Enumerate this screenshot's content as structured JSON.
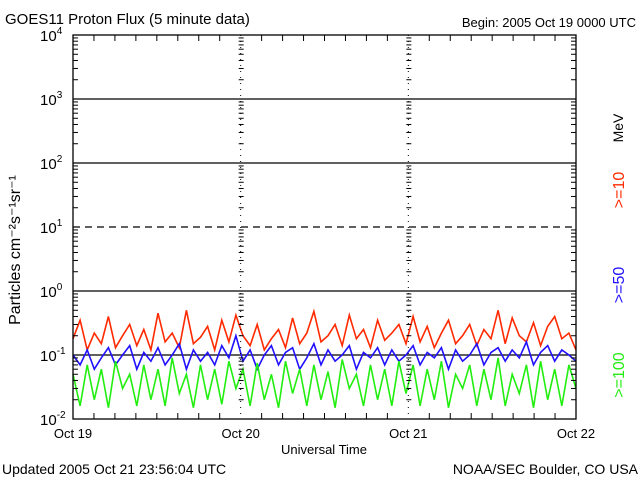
{
  "chart_data": {
    "type": "line",
    "title": "GOES11 Proton Flux (5 minute data)",
    "begin_label": "Begin: 2005 Oct 19 0000 UTC",
    "xlabel": "Universal Time",
    "ylabel": "Particles cm⁻²s⁻¹sr⁻¹",
    "yscale": "log",
    "ylim": [
      0.01,
      10000
    ],
    "y_ticks": [
      {
        "base": "10",
        "exp": "-2",
        "value": 0.01
      },
      {
        "base": "10",
        "exp": "-1",
        "value": 0.1
      },
      {
        "base": "10",
        "exp": "0",
        "value": 1
      },
      {
        "base": "10",
        "exp": "1",
        "value": 10
      },
      {
        "base": "10",
        "exp": "2",
        "value": 100
      },
      {
        "base": "10",
        "exp": "3",
        "value": 1000
      },
      {
        "base": "10",
        "exp": "4",
        "value": 10000
      }
    ],
    "x_ticks": [
      "Oct 19",
      "Oct 20",
      "Oct 21",
      "Oct 22"
    ],
    "x_range_hours": [
      0,
      72
    ],
    "grid_solid": [
      0.1,
      1,
      100,
      1000
    ],
    "grid_dashed": [
      10
    ],
    "energy_unit": "MeV",
    "series": [
      {
        "name": ">=10",
        "color": "#ff2a00",
        "values": [
          0.18,
          0.35,
          0.12,
          0.22,
          0.15,
          0.4,
          0.13,
          0.2,
          0.3,
          0.14,
          0.25,
          0.12,
          0.45,
          0.16,
          0.22,
          0.13,
          0.5,
          0.15,
          0.19,
          0.28,
          0.12,
          0.35,
          0.16,
          0.42,
          0.2,
          0.14,
          0.3,
          0.12,
          0.18,
          0.25,
          0.13,
          0.38,
          0.15,
          0.22,
          0.48,
          0.16,
          0.2,
          0.3,
          0.14,
          0.42,
          0.18,
          0.25,
          0.13,
          0.35,
          0.17,
          0.22,
          0.3,
          0.15,
          0.4,
          0.16,
          0.28,
          0.13,
          0.22,
          0.35,
          0.15,
          0.2,
          0.3,
          0.14,
          0.25,
          0.18,
          0.5,
          0.15,
          0.38,
          0.2,
          0.16,
          0.32,
          0.14,
          0.28,
          0.4,
          0.18,
          0.22,
          0.12
        ]
      },
      {
        "name": ">=50",
        "color": "#2010ff",
        "values": [
          0.1,
          0.07,
          0.12,
          0.06,
          0.09,
          0.13,
          0.07,
          0.1,
          0.14,
          0.06,
          0.11,
          0.08,
          0.13,
          0.07,
          0.1,
          0.15,
          0.06,
          0.12,
          0.08,
          0.11,
          0.07,
          0.14,
          0.09,
          0.2,
          0.08,
          0.12,
          0.06,
          0.1,
          0.14,
          0.07,
          0.11,
          0.13,
          0.06,
          0.09,
          0.15,
          0.07,
          0.12,
          0.08,
          0.1,
          0.14,
          0.06,
          0.11,
          0.09,
          0.13,
          0.07,
          0.12,
          0.08,
          0.1,
          0.14,
          0.07,
          0.11,
          0.09,
          0.13,
          0.06,
          0.12,
          0.08,
          0.1,
          0.15,
          0.07,
          0.11,
          0.13,
          0.08,
          0.12,
          0.09,
          0.16,
          0.07,
          0.11,
          0.14,
          0.08,
          0.12,
          0.1,
          0.08
        ]
      },
      {
        "name": ">=100",
        "color": "#22ee10",
        "values": [
          0.05,
          0.016,
          0.07,
          0.02,
          0.06,
          0.015,
          0.08,
          0.03,
          0.05,
          0.016,
          0.07,
          0.02,
          0.06,
          0.016,
          0.09,
          0.025,
          0.05,
          0.015,
          0.07,
          0.02,
          0.06,
          0.017,
          0.08,
          0.03,
          0.06,
          0.016,
          0.075,
          0.02,
          0.05,
          0.015,
          0.08,
          0.025,
          0.06,
          0.016,
          0.07,
          0.02,
          0.055,
          0.015,
          0.085,
          0.03,
          0.05,
          0.016,
          0.07,
          0.02,
          0.06,
          0.016,
          0.08,
          0.025,
          0.07,
          0.016,
          0.06,
          0.02,
          0.08,
          0.015,
          0.05,
          0.03,
          0.07,
          0.016,
          0.06,
          0.02,
          0.09,
          0.016,
          0.05,
          0.025,
          0.07,
          0.015,
          0.08,
          0.02,
          0.06,
          0.016,
          0.07,
          0.03
        ]
      }
    ]
  },
  "footer": {
    "updated": "Updated 2005 Oct 21 23:56:04 UTC",
    "credit": "NOAA/SEC Boulder, CO USA"
  }
}
